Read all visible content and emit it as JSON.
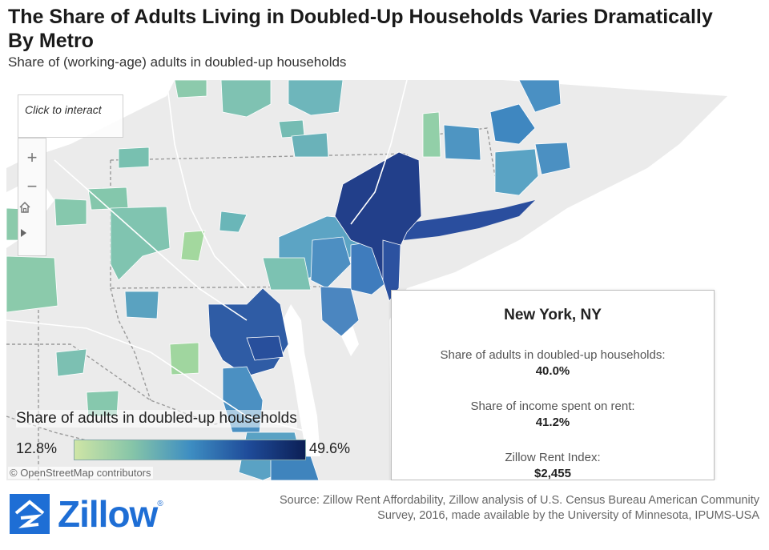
{
  "header": {
    "title": "The Share of Adults Living in Doubled-Up Households Varies Dramatically By Metro",
    "subtitle": "Share of (working-age) adults in doubled-up households"
  },
  "map": {
    "click_to_interact": "Click to interact",
    "zoom_in_icon": "plus-icon",
    "zoom_out_icon": "minus-icon",
    "home_icon": "home-icon",
    "play_icon": "play-icon",
    "attribution": "© OpenStreetMap contributors",
    "colors": {
      "land": "#ebebeb",
      "water": "#ffffff",
      "low": "#cfe5a6",
      "mid_low": "#86c5a8",
      "mid": "#3e8ec2",
      "mid_high": "#1f4c9a",
      "high": "#0c1f55"
    }
  },
  "legend": {
    "title": "Share of adults in doubled-up households",
    "min_label": "12.8%",
    "max_label": "49.6%"
  },
  "tooltip": {
    "metro": "New York, NY",
    "share_label": "Share of adults in doubled-up households:",
    "share_value": "40.0%",
    "income_label": "Share of income spent on rent:",
    "income_value": "41.2%",
    "rent_label": "Zillow Rent Index:",
    "rent_value": "$2,455"
  },
  "branding": {
    "logo_text": "Zillow",
    "logo_mark": "reg-mark",
    "brand_color": "#1e6ed5"
  },
  "source": "Source: Zillow Rent Affordability, Zillow analysis of U.S. Census Bureau American Community Survey, 2016, made available by the University of Minnesota, IPUMS-USA"
}
